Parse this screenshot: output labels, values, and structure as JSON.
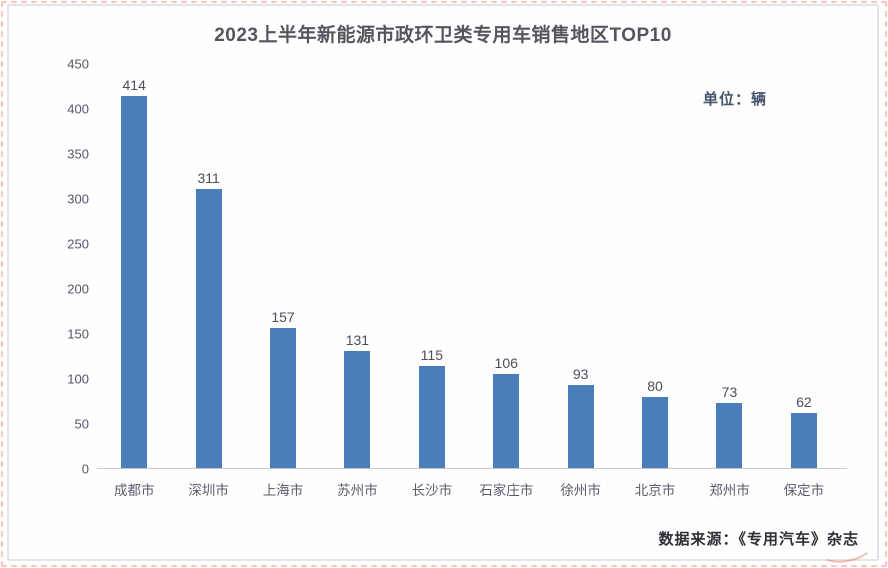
{
  "page": {
    "title": "2023上半年新能源市政环卫类专用车销售地区TOP10",
    "unit_label": "单位：辆",
    "source_label": "数据来源：《专用汽车》杂志"
  },
  "chart_data": {
    "type": "bar",
    "title": "2023上半年新能源市政环卫类专用车销售地区TOP10",
    "unit": "单位：辆",
    "source": "数据来源：《专用汽车》杂志",
    "categories": [
      "成都市",
      "深圳市",
      "上海市",
      "苏州市",
      "长沙市",
      "石家庄市",
      "徐州市",
      "北京市",
      "郑州市",
      "保定市"
    ],
    "values": [
      414,
      311,
      157,
      131,
      115,
      106,
      93,
      80,
      73,
      62
    ],
    "xlabel": "",
    "ylabel": "",
    "ylim": [
      0,
      450
    ],
    "yticks": [
      0,
      50,
      100,
      150,
      200,
      250,
      300,
      350,
      400,
      450
    ],
    "grid": false,
    "legend": null,
    "data_labels": true,
    "bar_color": "#4a7ebb",
    "label_color": "#4d4d5c",
    "axis_label_color": "#5c5c6e",
    "title_color": "#55555f"
  }
}
